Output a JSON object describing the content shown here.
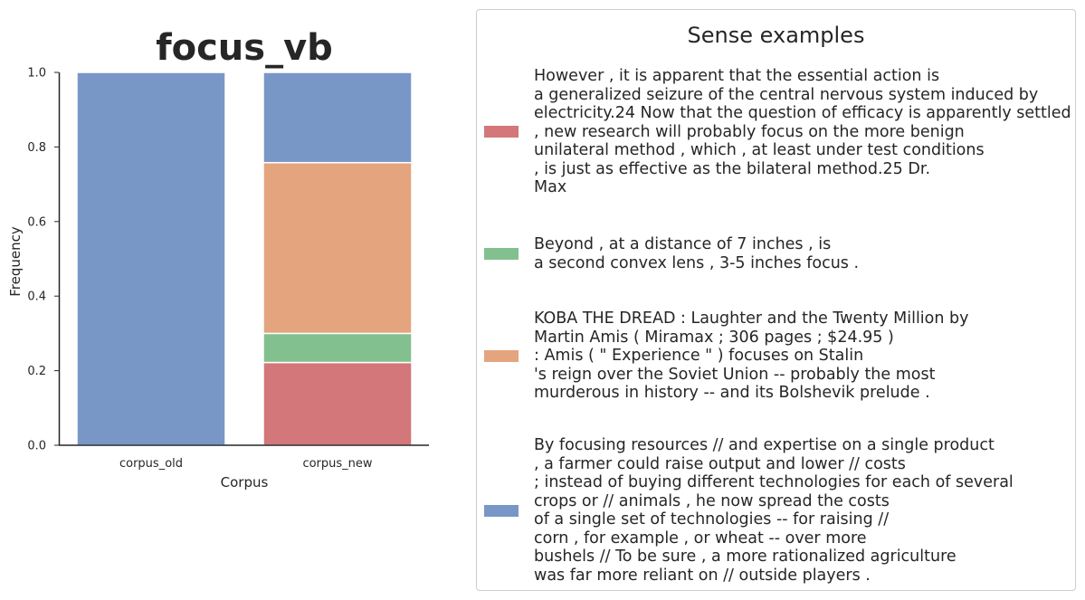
{
  "chart_data": {
    "type": "bar",
    "stacked": true,
    "title": "focus_vb",
    "xlabel": "Corpus",
    "ylabel": "Frequency",
    "ylim": [
      0,
      1.0
    ],
    "yticks": [
      "0.0",
      "0.2",
      "0.4",
      "0.6",
      "0.8",
      "1.0"
    ],
    "categories": [
      "corpus_old",
      "corpus_new"
    ],
    "series": [
      {
        "color": "#d3777a",
        "values": [
          0.0,
          0.222
        ]
      },
      {
        "color": "#82c18f",
        "values": [
          0.0,
          0.078
        ]
      },
      {
        "color": "#e4a47e",
        "values": [
          0.0,
          0.458
        ]
      },
      {
        "color": "#7997c6",
        "values": [
          1.0,
          0.242
        ]
      }
    ],
    "grid": false,
    "legend_placement": "right"
  },
  "legend": {
    "title": "Sense examples",
    "entries": [
      {
        "color": "#d3777a",
        "lines": [
          "However , it is apparent that the essential action is",
          "a generalized seizure of the central nervous system induced by",
          "electricity.24 Now that the question of efficacy is apparently settled",
          ", new research will probably focus on the more benign",
          "unilateral method , which , at least under test conditions",
          ", is just as effective as the bilateral method.25 Dr.",
          "Max"
        ]
      },
      {
        "color": "#82c18f",
        "lines": [
          "Beyond , at a distance of 7 inches , is",
          "a second convex lens , 3-5 inches focus ."
        ]
      },
      {
        "color": "#e4a47e",
        "lines": [
          "KOBA THE DREAD : Laughter and the Twenty Million by",
          "Martin Amis ( Miramax ; 306 pages ; $24.95 )",
          ": Amis ( \" Experience \" ) focuses on Stalin",
          "'s reign over the Soviet Union -- probably the most",
          "murderous in history -- and its Bolshevik prelude ."
        ]
      },
      {
        "color": "#7997c6",
        "lines": [
          "By focusing resources // and expertise on a single product",
          ", a farmer could raise output and lower // costs",
          "; instead of buying different technologies for each of several",
          "crops or // animals , he now spread the costs",
          "of a single set of technologies -- for raising //",
          "corn , for example , or wheat -- over more",
          "bushels // To be sure , a more rationalized agriculture",
          "was far more reliant on // outside players ."
        ]
      }
    ]
  }
}
